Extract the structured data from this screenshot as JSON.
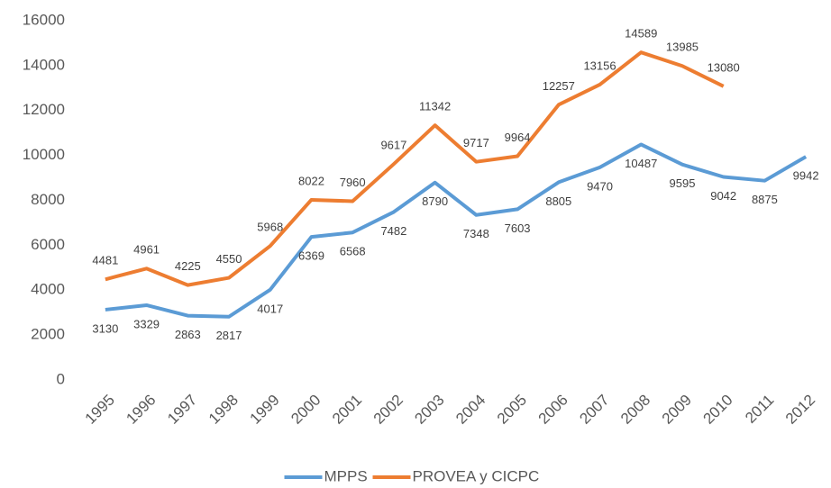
{
  "chart_data": {
    "type": "line",
    "categories": [
      "1995",
      "1996",
      "1997",
      "1998",
      "1999",
      "2000",
      "2001",
      "2002",
      "2003",
      "2004",
      "2005",
      "2006",
      "2007",
      "2008",
      "2009",
      "2010",
      "2011",
      "2012"
    ],
    "series": [
      {
        "name": "MPPS",
        "color": "#5b9bd5",
        "values": [
          3130,
          3329,
          2863,
          2817,
          4017,
          6369,
          6568,
          7482,
          8790,
          7348,
          7603,
          8805,
          9470,
          10487,
          9595,
          9042,
          8875,
          9942
        ]
      },
      {
        "name": "PROVEA y CICPC",
        "color": "#ed7d31",
        "values": [
          4481,
          4961,
          4225,
          4550,
          5968,
          8022,
          7960,
          9617,
          11342,
          9717,
          9964,
          12257,
          13156,
          14589,
          13985,
          13080,
          null,
          null
        ]
      }
    ],
    "ylim": [
      0,
      16000
    ],
    "yticks": [
      0,
      2000,
      4000,
      6000,
      8000,
      10000,
      12000,
      14000,
      16000
    ],
    "grid": false,
    "legend": "bottom"
  }
}
